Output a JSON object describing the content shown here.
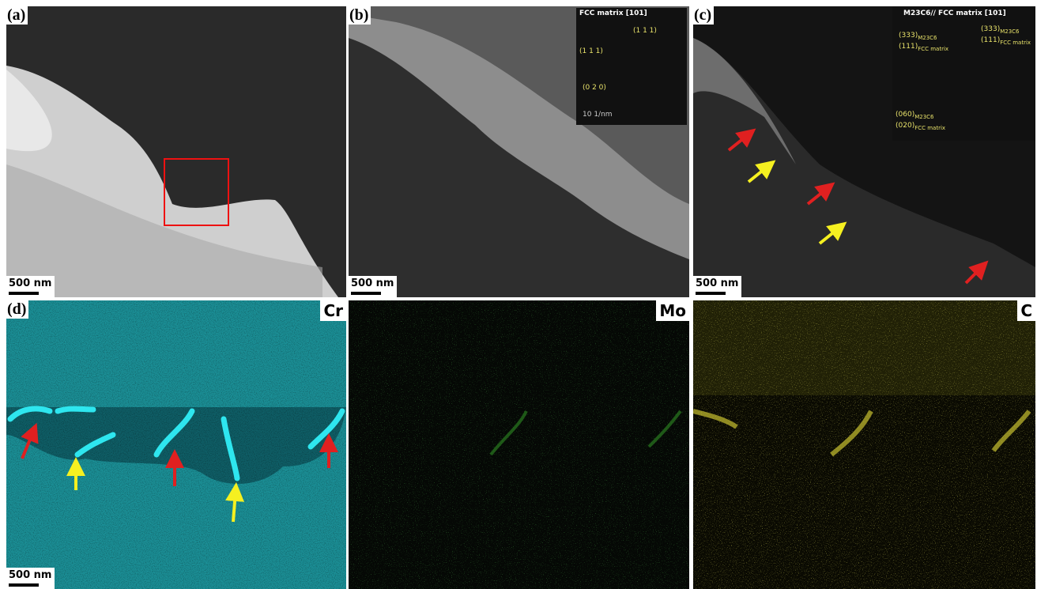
{
  "panels": [
    {
      "label": "(a)",
      "scale_bar": "500 nm"
    },
    {
      "label": "(b)",
      "scale_bar": "500 nm",
      "inset": {
        "title": "FCC matrix [101]",
        "labels": [
          "(1 1 1)",
          "(1 1 1)",
          "(0 2 0)"
        ],
        "scale": "10 1/nm"
      }
    },
    {
      "label": "(c)",
      "scale_bar": "500 nm",
      "inset": {
        "title": "M23C6// FCC matrix [101]",
        "labels": [
          {
            "text": "(333)",
            "sub": "M23C6"
          },
          {
            "text": "(111)",
            "sub": "FCC matrix"
          },
          {
            "text": "(333)",
            "sub": "M23C6"
          },
          {
            "text": "(111)",
            "sub": "FCC matrix"
          },
          {
            "text": "(060)",
            "sub": "M23C6"
          },
          {
            "text": "(020)",
            "sub": "FCC matrix"
          }
        ]
      }
    },
    {
      "label": "(d)",
      "element": "Cr",
      "scale_bar": "500 nm"
    },
    {
      "element": "Mo"
    },
    {
      "element": "C"
    }
  ]
}
